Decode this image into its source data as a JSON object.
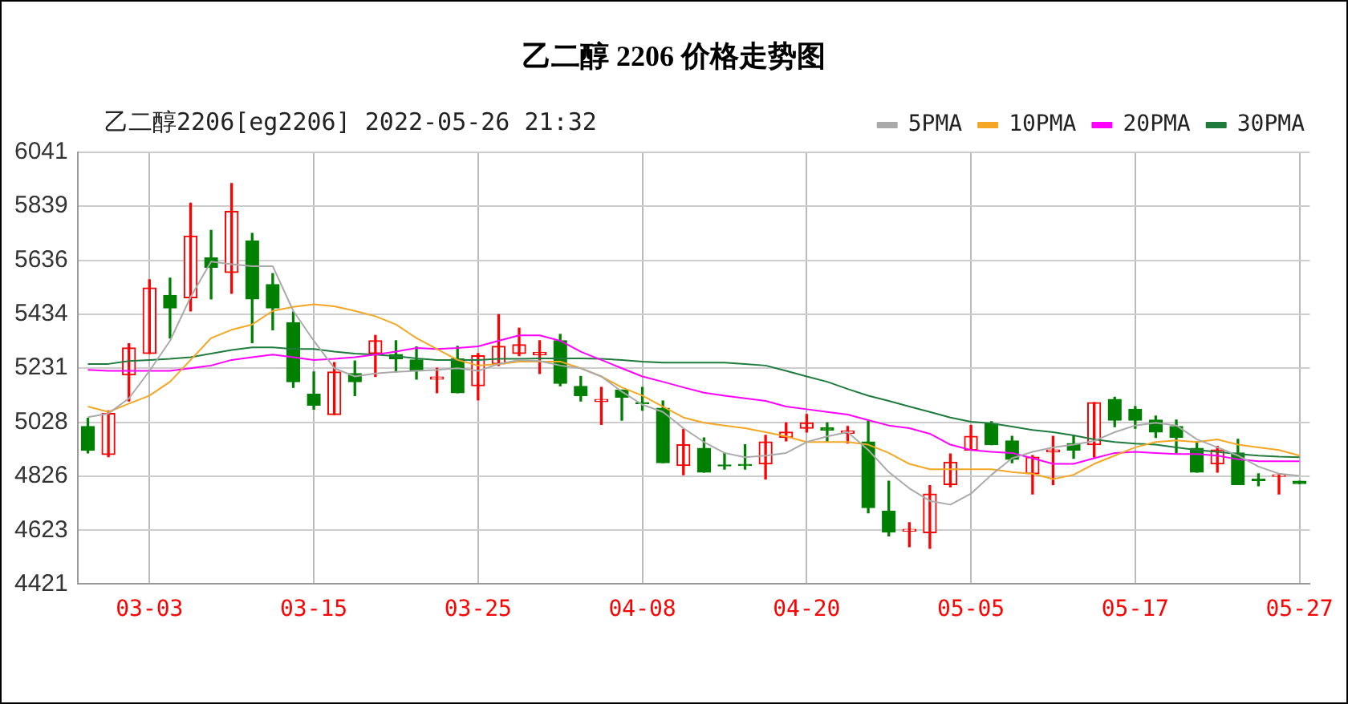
{
  "chart_data": {
    "type": "candlestick",
    "title": "乙二醇 2206 价格走势图",
    "subtitle": "乙二醇2206[eg2206] 2022-05-26 21:32",
    "categories": [
      null,
      null,
      null,
      "03-03",
      null,
      null,
      null,
      null,
      null,
      null,
      null,
      "03-15",
      null,
      null,
      null,
      null,
      null,
      null,
      null,
      "03-25",
      null,
      null,
      null,
      null,
      null,
      null,
      null,
      "04-08",
      null,
      null,
      null,
      null,
      null,
      null,
      null,
      "04-20",
      null,
      null,
      null,
      null,
      null,
      null,
      null,
      "05-05",
      null,
      null,
      null,
      null,
      null,
      null,
      null,
      "05-17",
      null,
      null,
      null,
      null,
      null,
      null,
      null,
      "05-27"
    ],
    "ohlc": [
      [
        5012,
        5043,
        4913,
        4923
      ],
      [
        4907,
        5071,
        4899,
        5061
      ],
      [
        5206,
        5323,
        5108,
        5307
      ],
      [
        5286,
        5563,
        5286,
        5532
      ],
      [
        5504,
        5569,
        5344,
        5457
      ],
      [
        5495,
        5850,
        5446,
        5727
      ],
      [
        5645,
        5748,
        5491,
        5610
      ],
      [
        5590,
        5924,
        5512,
        5819
      ],
      [
        5709,
        5737,
        5327,
        5491
      ],
      [
        5545,
        5586,
        5375,
        5457
      ],
      [
        5401,
        5442,
        5159,
        5180
      ],
      [
        5133,
        5217,
        5077,
        5092
      ],
      [
        5057,
        5252,
        5057,
        5217
      ],
      [
        5211,
        5258,
        5128,
        5180
      ],
      [
        5286,
        5354,
        5200,
        5334
      ],
      [
        5282,
        5334,
        5217,
        5266
      ],
      [
        5262,
        5311,
        5190,
        5221
      ],
      [
        5190,
        5231,
        5139,
        5198
      ],
      [
        5266,
        5313,
        5139,
        5139
      ],
      [
        5165,
        5286,
        5112,
        5278
      ],
      [
        5247,
        5432,
        5241,
        5313
      ],
      [
        5286,
        5381,
        5278,
        5319
      ],
      [
        5282,
        5334,
        5211,
        5290
      ],
      [
        5334,
        5358,
        5165,
        5174
      ],
      [
        5163,
        5200,
        5108,
        5128
      ],
      [
        5106,
        5159,
        5020,
        5114
      ],
      [
        5149,
        5149,
        5036,
        5122
      ],
      [
        5102,
        5159,
        5073,
        5098
      ],
      [
        5081,
        5108,
        4876,
        4876
      ],
      [
        4866,
        5001,
        4831,
        4944
      ],
      [
        4930,
        4969,
        4841,
        4841
      ],
      [
        4868,
        4913,
        4852,
        4864
      ],
      [
        4870,
        4944,
        4852,
        4866
      ],
      [
        4872,
        4979,
        4815,
        4954
      ],
      [
        4971,
        5026,
        4958,
        4991
      ],
      [
        5006,
        5057,
        4991,
        5026
      ],
      [
        5008,
        5026,
        4954,
        4999
      ],
      [
        4987,
        5012,
        4950,
        4995
      ],
      [
        4954,
        5036,
        4688,
        4708
      ],
      [
        4694,
        4807,
        4602,
        4616
      ],
      [
        4620,
        4651,
        4561,
        4626
      ],
      [
        4614,
        4790,
        4555,
        4759
      ],
      [
        4794,
        4909,
        4786,
        4878
      ],
      [
        4924,
        5016,
        4924,
        4975
      ],
      [
        5022,
        5030,
        4944,
        4944
      ],
      [
        4958,
        4975,
        4876,
        4889
      ],
      [
        4835,
        4903,
        4759,
        4897
      ],
      [
        4917,
        4975,
        4794,
        4924
      ],
      [
        4948,
        4979,
        4893,
        4924
      ],
      [
        4944,
        5102,
        4897,
        5102
      ],
      [
        5114,
        5122,
        5012,
        5036
      ],
      [
        5077,
        5087,
        5006,
        5036
      ],
      [
        5036,
        5051,
        4971,
        4991
      ],
      [
        5012,
        5036,
        4913,
        4971
      ],
      [
        4930,
        4954,
        4841,
        4841
      ],
      [
        4872,
        4938,
        4841,
        4924
      ],
      [
        4913,
        4964,
        4794,
        4794
      ],
      [
        4815,
        4835,
        4790,
        4809
      ],
      [
        4825,
        4831,
        4759,
        4831
      ],
      [
        4807,
        4807,
        4798,
        4798
      ]
    ],
    "colors": [
      "#008000",
      "#ff0000",
      "#ff0000",
      "#ff0000",
      "#008000",
      "#ff0000",
      "#008000",
      "#ff0000",
      "#008000",
      "#008000",
      "#008000",
      "#008000",
      "#ff0000",
      "#008000",
      "#ff0000",
      "#008000",
      "#008000",
      "#ff0000",
      "#008000",
      "#ff0000",
      "#ff0000",
      "#ff0000",
      "#ff0000",
      "#008000",
      "#008000",
      "#ff0000",
      "#008000",
      "#008000",
      "#008000",
      "#ff0000",
      "#008000",
      "#008000",
      "#008000",
      "#ff0000",
      "#ff0000",
      "#ff0000",
      "#008000",
      "#ff0000",
      "#008000",
      "#008000",
      "#ff0000",
      "#ff0000",
      "#ff0000",
      "#ff0000",
      "#008000",
      "#008000",
      "#ff0000",
      "#ff0000",
      "#008000",
      "#ff0000",
      "#008000",
      "#008000",
      "#008000",
      "#008000",
      "#008000",
      "#ff0000",
      "#008000",
      "#008000",
      "#ff0000",
      "#008000"
    ],
    "series": [
      {
        "name": "5PMA",
        "type": "line",
        "color": "#aaaaaa",
        "values": [
          5047,
          5061,
          5118,
          5221,
          5334,
          5498,
          5631,
          5621,
          5614,
          5614,
          5446,
          5334,
          5231,
          5200,
          5211,
          5217,
          5221,
          5225,
          5231,
          5221,
          5247,
          5262,
          5258,
          5241,
          5231,
          5200,
          5143,
          5094,
          5067,
          5006,
          4954,
          4913,
          4897,
          4903,
          4913,
          4954,
          4975,
          4991,
          4924,
          4841,
          4780,
          4733,
          4719,
          4760,
          4831,
          4893,
          4917,
          4934,
          4944,
          4958,
          4991,
          5016,
          5026,
          5016,
          4964,
          4934,
          4903,
          4862,
          4835,
          4827
        ]
      },
      {
        "name": "10PMA",
        "type": "line",
        "color": "#f5a623",
        "values": [
          5087,
          5067,
          5098,
          5128,
          5180,
          5262,
          5344,
          5375,
          5395,
          5446,
          5461,
          5471,
          5463,
          5446,
          5426,
          5395,
          5344,
          5303,
          5262,
          5241,
          5247,
          5256,
          5256,
          5256,
          5231,
          5200,
          5159,
          5128,
          5087,
          5046,
          5026,
          5016,
          5006,
          4991,
          4975,
          4954,
          4954,
          4954,
          4944,
          4913,
          4872,
          4852,
          4852,
          4852,
          4852,
          4841,
          4835,
          4815,
          4831,
          4872,
          4903,
          4934,
          4954,
          4960,
          4954,
          4964,
          4944,
          4934,
          4924,
          4903
        ]
      },
      {
        "name": "20PMA",
        "type": "line",
        "color": "#ff00ff",
        "values": [
          5225,
          5221,
          5221,
          5221,
          5221,
          5231,
          5241,
          5262,
          5272,
          5282,
          5272,
          5262,
          5266,
          5272,
          5282,
          5293,
          5307,
          5303,
          5307,
          5313,
          5334,
          5354,
          5354,
          5334,
          5293,
          5262,
          5231,
          5200,
          5180,
          5159,
          5139,
          5128,
          5118,
          5108,
          5087,
          5077,
          5067,
          5057,
          5036,
          5016,
          5006,
          4985,
          4944,
          4924,
          4917,
          4913,
          4893,
          4872,
          4872,
          4893,
          4913,
          4917,
          4913,
          4909,
          4909,
          4903,
          4889,
          4882,
          4882,
          4882
        ]
      },
      {
        "name": "30PMA",
        "type": "line",
        "color": "#1e7b3c",
        "values": [
          5247,
          5247,
          5258,
          5262,
          5266,
          5272,
          5286,
          5299,
          5309,
          5309,
          5303,
          5303,
          5293,
          5286,
          5282,
          5276,
          5268,
          5262,
          5262,
          5262,
          5266,
          5266,
          5268,
          5268,
          5268,
          5266,
          5262,
          5256,
          5252,
          5252,
          5252,
          5252,
          5247,
          5241,
          5221,
          5200,
          5180,
          5153,
          5128,
          5108,
          5087,
          5067,
          5046,
          5030,
          5024,
          5012,
          4999,
          4991,
          4979,
          4964,
          4954,
          4948,
          4944,
          4934,
          4924,
          4917,
          4909,
          4903,
          4899,
          4897
        ]
      }
    ],
    "ylim": [
      4421,
      6041
    ],
    "yticks": [
      4421,
      4623,
      4826,
      5028,
      5231,
      5434,
      5636,
      5839,
      6041
    ],
    "grid": true,
    "legend": "top right"
  }
}
